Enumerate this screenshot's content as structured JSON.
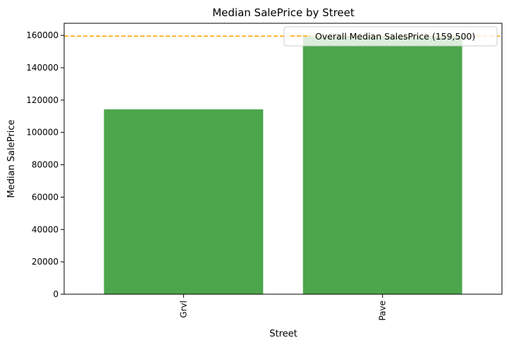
{
  "chart_data": {
    "type": "bar",
    "title": "Median SalePrice by Street",
    "xlabel": "Street",
    "ylabel": "Median SalePrice",
    "categories": [
      "Grvl",
      "Pave"
    ],
    "values": [
      114250,
      159500
    ],
    "ylim": [
      0,
      167475
    ],
    "yticks": [
      0,
      20000,
      40000,
      60000,
      80000,
      100000,
      120000,
      140000,
      160000
    ],
    "bar_color": "#4ca64c",
    "reference_line": {
      "value": 159500,
      "label": "Overall Median SalesPrice (159,500)",
      "color": "#ffa500",
      "style": "dashed"
    },
    "legend_position": "top-right",
    "grid": false
  }
}
